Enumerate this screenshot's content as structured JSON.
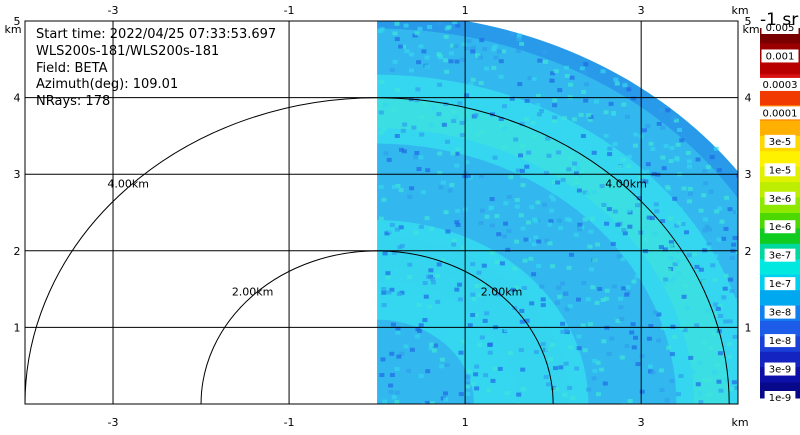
{
  "info": {
    "start_time": "Start time: 2022/04/25 07:33:53.697",
    "instrument": "WLS200s-181/WLS200s-181",
    "field": "Field: BETA",
    "azimuth": "Azimuth(deg): 109.01",
    "nrays": "NRays: 178"
  },
  "axis_units": {
    "x": "km",
    "y": "km"
  },
  "chart_data": {
    "type": "heatmap",
    "title": "",
    "xlabel": "km",
    "ylabel": "km",
    "xlim": [
      -4.0,
      4.1
    ],
    "ylim": [
      0,
      5.0
    ],
    "grid": true,
    "x_ticks": [
      -3,
      -1,
      1,
      3
    ],
    "y_ticks": [
      1,
      2,
      3,
      4,
      5
    ],
    "range_rings": [
      {
        "radius_km": 2.0,
        "label": "2.00km"
      },
      {
        "radius_km": 4.0,
        "label": "4.00km"
      }
    ],
    "data_extent": {
      "x_min_km": 0.0,
      "max_range_km": 5.1
    },
    "colorbar": {
      "title": "-1 sr",
      "labels": [
        "0.005",
        "0.001",
        "0.0003",
        "0.0001",
        "3e-5",
        "1e-5",
        "3e-6",
        "1e-6",
        "3e-7",
        "1e-7",
        "3e-8",
        "1e-8",
        "3e-9",
        "1e-9"
      ],
      "colors": [
        "#7a0000",
        "#9a0000",
        "#b80000",
        "#d81010",
        "#f03a00",
        "#ff7a00",
        "#ffb000",
        "#ffd800",
        "#fff200",
        "#dff000",
        "#bdee00",
        "#8ee800",
        "#4cd800",
        "#10cc20",
        "#00d8a0",
        "#00e8e0",
        "#00d0f0",
        "#00a8f0",
        "#1080f0",
        "#1c5ce8",
        "#1a40d8",
        "#1424c0",
        "#0c10a8",
        "#08088a"
      ]
    },
    "dominant_colors": [
      "#35d6f0",
      "#2fa0ec",
      "#1f6ae6",
      "#3fe6d8"
    ]
  }
}
